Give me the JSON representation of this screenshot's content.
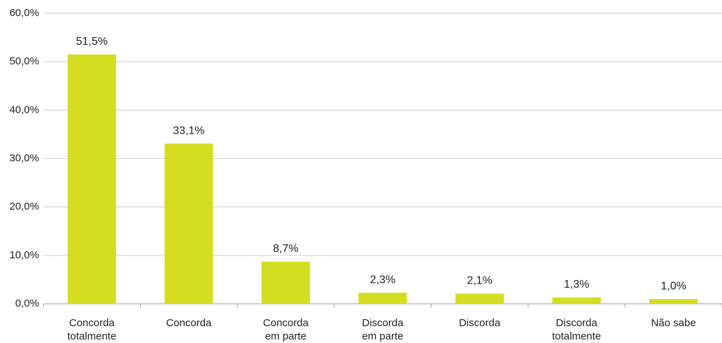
{
  "chart_data": {
    "type": "bar",
    "categories": [
      "Concorda totalmente",
      "Concorda",
      "Concorda em parte",
      "Discorda em parte",
      "Discorda",
      "Discorda totalmente",
      "Não sabe"
    ],
    "values": [
      51.5,
      33.1,
      8.7,
      2.3,
      2.1,
      1.3,
      1.0
    ],
    "value_labels": [
      "51,5%",
      "33,1%",
      "8,7%",
      "2,3%",
      "2,1%",
      "1,3%",
      "1,0%"
    ],
    "color": "#d5dd22",
    "ylim": [
      0,
      60
    ],
    "yticks": [
      {
        "value": 0,
        "label": "0,0%"
      },
      {
        "value": 10,
        "label": "10,0%"
      },
      {
        "value": 20,
        "label": "20,0%"
      },
      {
        "value": 30,
        "label": "30,0%"
      },
      {
        "value": 40,
        "label": "40,0%"
      },
      {
        "value": 50,
        "label": "50,0%"
      },
      {
        "value": 60,
        "label": "60,0%"
      }
    ],
    "grid": true
  }
}
